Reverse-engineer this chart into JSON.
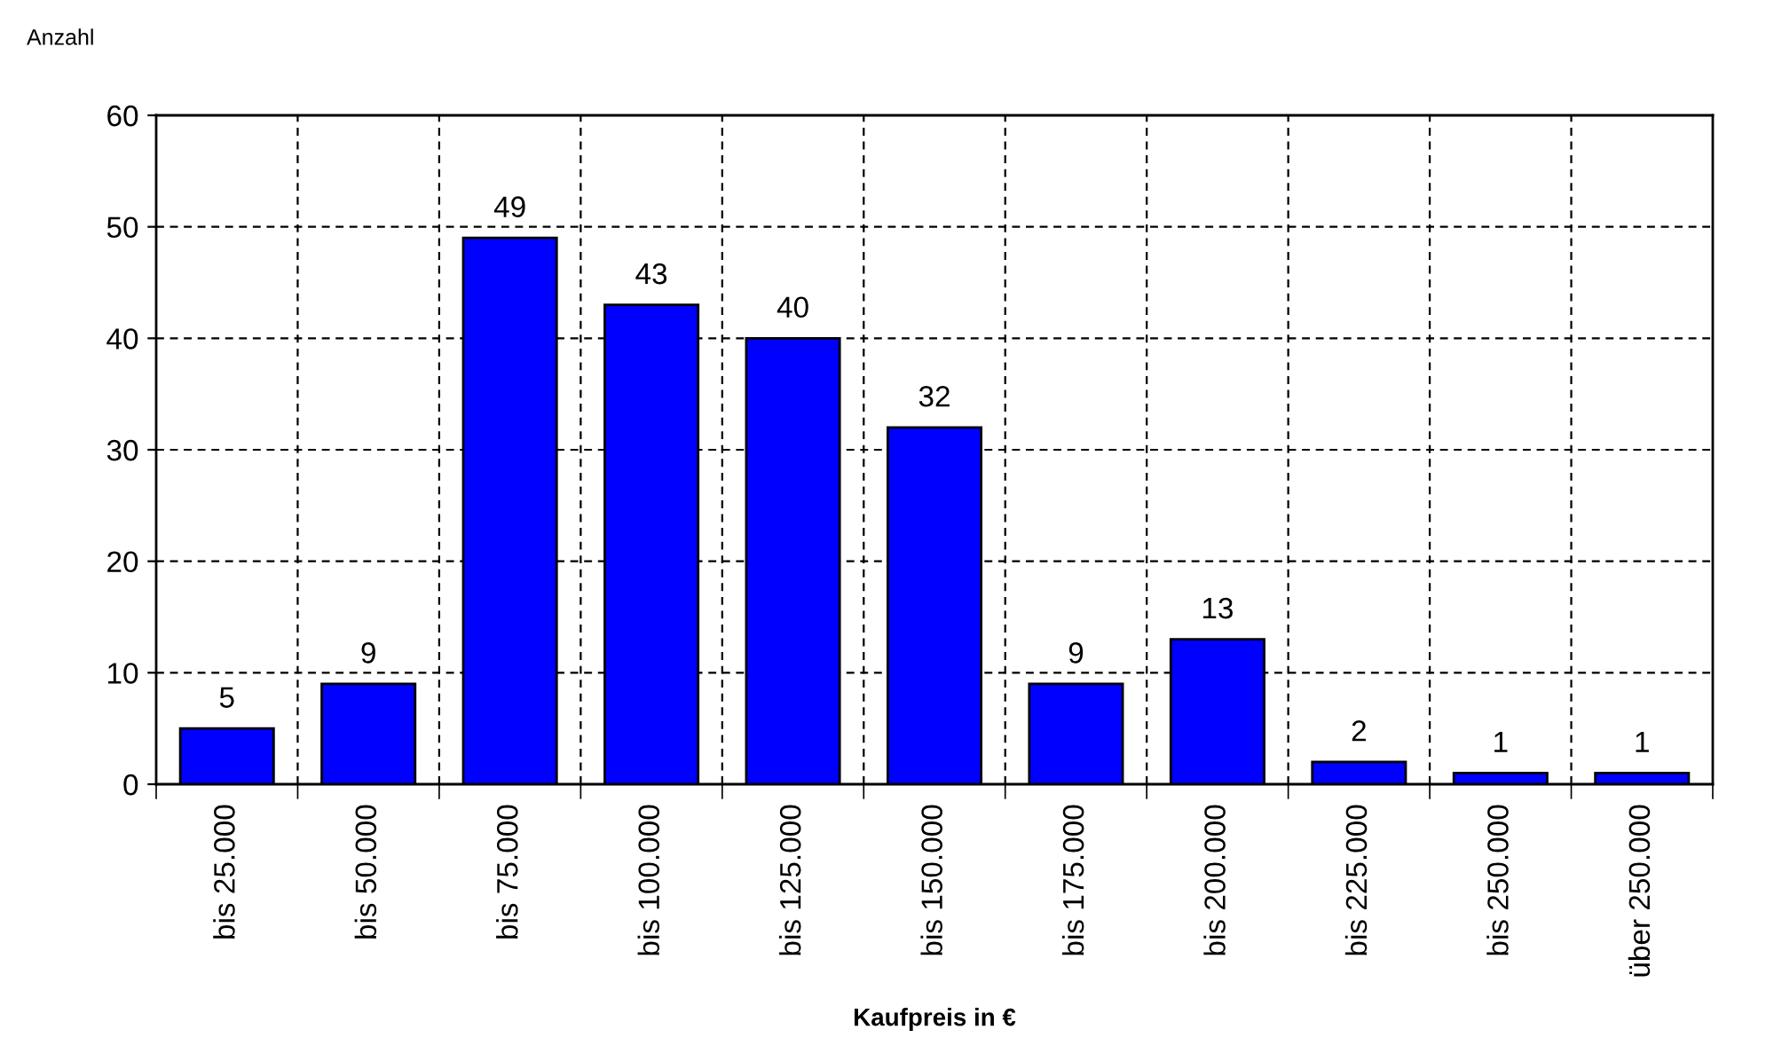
{
  "chart_data": {
    "type": "bar",
    "ylabel": "Anzahl",
    "xlabel": "Kaufpreis in €",
    "categories": [
      "bis 25.000",
      "bis 50.000",
      "bis 75.000",
      "bis 100.000",
      "bis 125.000",
      "bis 150.000",
      "bis 175.000",
      "bis 200.000",
      "bis 225.000",
      "bis 250.000",
      "über 250.000"
    ],
    "values": [
      5,
      9,
      49,
      43,
      40,
      32,
      9,
      13,
      2,
      1,
      1
    ],
    "color": "#0000ff",
    "ylim": [
      0,
      60
    ],
    "yticks": [
      0,
      10,
      20,
      30,
      40,
      50,
      60
    ],
    "grid": true,
    "data_labels": true,
    "legend": false
  }
}
